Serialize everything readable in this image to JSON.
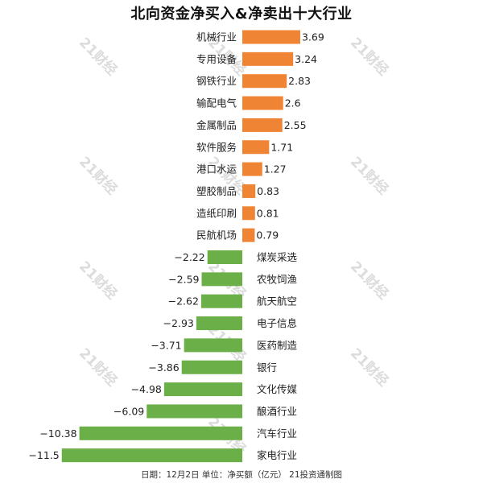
{
  "chart_data": {
    "type": "bar",
    "orientation": "horizontal",
    "title": "北向资金净买入&净卖出十大行业",
    "footnote": "日期：12月2日 单位：净买额（亿元） 21投资通制图",
    "watermark": "21财经",
    "categories": [
      "机械行业",
      "专用设备",
      "钢铁行业",
      "输配电气",
      "金属制品",
      "软件服务",
      "港口水运",
      "塑胶制品",
      "造纸印刷",
      "民航机场",
      "煤炭采选",
      "农牧饲渔",
      "航天航空",
      "电子信息",
      "医药制造",
      "银行",
      "文化传媒",
      "酿酒行业",
      "汽车行业",
      "家电行业"
    ],
    "values": [
      3.69,
      3.24,
      2.83,
      2.6,
      2.55,
      1.71,
      1.27,
      0.83,
      0.81,
      0.79,
      -2.22,
      -2.59,
      -2.62,
      -2.93,
      -3.71,
      -3.86,
      -4.98,
      -6.09,
      -10.38,
      -11.5
    ],
    "value_labels": [
      "3.69",
      "3.24",
      "2.83",
      "2.6",
      "2.55",
      "1.71",
      "1.27",
      "0.83",
      "0.81",
      "0.79",
      "−2.22",
      "−2.59",
      "−2.62",
      "−2.93",
      "−3.71",
      "−3.86",
      "−4.98",
      "−6.09",
      "−10.38",
      "−11.5"
    ],
    "colors": {
      "positive": "#ee8434",
      "negative": "#6aaf47",
      "watermark": "#dcdcdc"
    },
    "xlim": [
      -12.5,
      4.5
    ],
    "grid": false,
    "legend": "none"
  }
}
